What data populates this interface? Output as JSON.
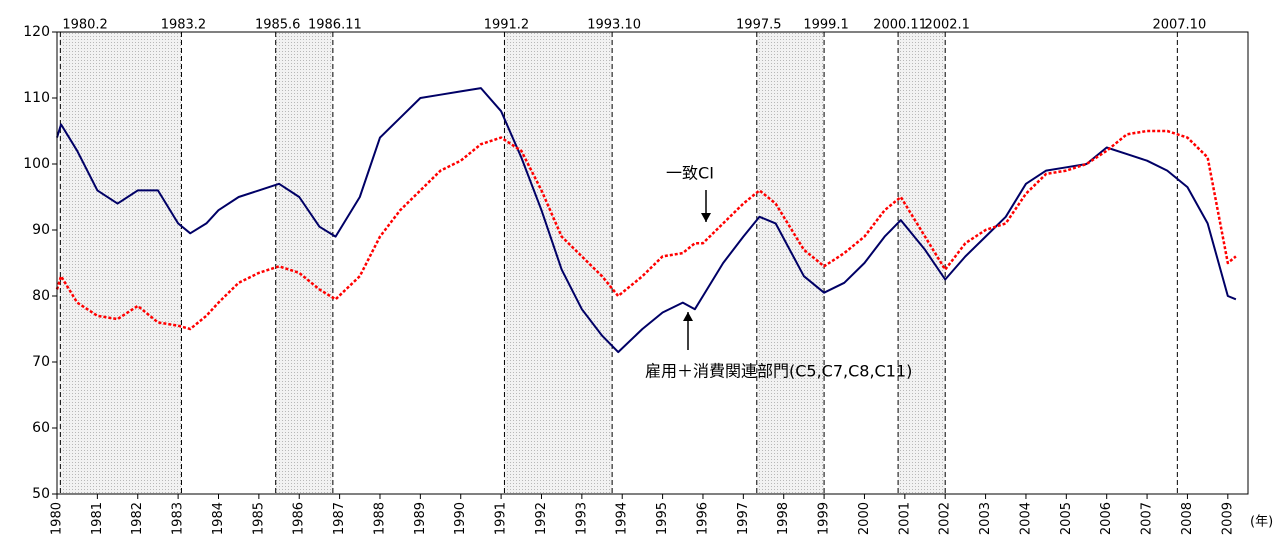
{
  "chart_data": {
    "type": "line",
    "x": [
      1980.0,
      1980.1,
      1980.5,
      1981.0,
      1981.5,
      1982.0,
      1982.5,
      1983.0,
      1983.3,
      1983.7,
      1984.0,
      1984.5,
      1985.0,
      1985.5,
      1986.0,
      1986.5,
      1986.9,
      1987.5,
      1988.0,
      1988.5,
      1989.0,
      1989.5,
      1990.0,
      1990.5,
      1991.0,
      1991.5,
      1992.0,
      1992.5,
      1993.0,
      1993.5,
      1993.9,
      1994.5,
      1995.0,
      1995.5,
      1995.8,
      1996.0,
      1996.5,
      1997.0,
      1997.4,
      1997.8,
      1998.5,
      1999.0,
      1999.5,
      2000.0,
      2000.5,
      2000.9,
      2001.5,
      2002.0,
      2002.5,
      2003.0,
      2003.5,
      2004.0,
      2004.5,
      2005.0,
      2005.5,
      2006.0,
      2006.5,
      2007.0,
      2007.5,
      2008.0,
      2008.5,
      2009.0,
      2009.2
    ],
    "series": [
      {
        "name": "雇用＋消費関連部門(C5,C7,C8,C11)",
        "color": "#000066",
        "style": "solid",
        "values": [
          104,
          106,
          102,
          96,
          94,
          96,
          96,
          91,
          89.5,
          91,
          93,
          95,
          96,
          97,
          95,
          90.5,
          89,
          95,
          104,
          107,
          110,
          110.5,
          111,
          111.5,
          108,
          101,
          93,
          84,
          78,
          74,
          71.5,
          75,
          77.5,
          79,
          78,
          80,
          85,
          89,
          92,
          91,
          83,
          80.5,
          82,
          85,
          89,
          91.5,
          87,
          82.5,
          86,
          89,
          92,
          97,
          99,
          99.5,
          100,
          102.5,
          101.5,
          100.5,
          99,
          96.5,
          91,
          80,
          79.5
        ]
      },
      {
        "name": "一致CI",
        "color": "#ff0000",
        "style": "dotted",
        "values": [
          81,
          83,
          79,
          77,
          76.5,
          78.5,
          76,
          75.5,
          75,
          77,
          79,
          82,
          83.5,
          84.5,
          83.5,
          81,
          79.5,
          83,
          89,
          93,
          96,
          99,
          100.5,
          103,
          104,
          102,
          96,
          89,
          86,
          83,
          80,
          83,
          86,
          86.5,
          88,
          88,
          91,
          94,
          96,
          94,
          87,
          84.5,
          86.5,
          89,
          93,
          95,
          89,
          84,
          88,
          90,
          91,
          95.5,
          98.5,
          99,
          100,
          102,
          104.5,
          105,
          105,
          104,
          101,
          85,
          86
        ]
      }
    ],
    "xlim": [
      1980,
      2009.5
    ],
    "xticks": [
      1980,
      1981,
      1982,
      1983,
      1984,
      1985,
      1986,
      1987,
      1988,
      1989,
      1990,
      1991,
      1992,
      1993,
      1994,
      1995,
      1996,
      1997,
      1998,
      1999,
      2000,
      2001,
      2002,
      2003,
      2004,
      2005,
      2006,
      2007,
      2008,
      2009
    ],
    "ylim": [
      50,
      120
    ],
    "yticks": [
      50,
      60,
      70,
      80,
      90,
      100,
      110,
      120
    ],
    "x_unit_label": "(年)",
    "reference_lines": [
      {
        "value": 1980.083,
        "label": "1980.2"
      },
      {
        "value": 1983.083,
        "label": "1983.2"
      },
      {
        "value": 1985.417,
        "label": "1985.6"
      },
      {
        "value": 1986.833,
        "label": "1986.11"
      },
      {
        "value": 1991.083,
        "label": "1991.2"
      },
      {
        "value": 1993.75,
        "label": "1993.10"
      },
      {
        "value": 1997.333,
        "label": "1997.5"
      },
      {
        "value": 1999.0,
        "label": "1999.1"
      },
      {
        "value": 2000.833,
        "label": "2000.11"
      },
      {
        "value": 2002.0,
        "label": "2002.1"
      },
      {
        "value": 2007.75,
        "label": "2007.10"
      }
    ]
  }
}
